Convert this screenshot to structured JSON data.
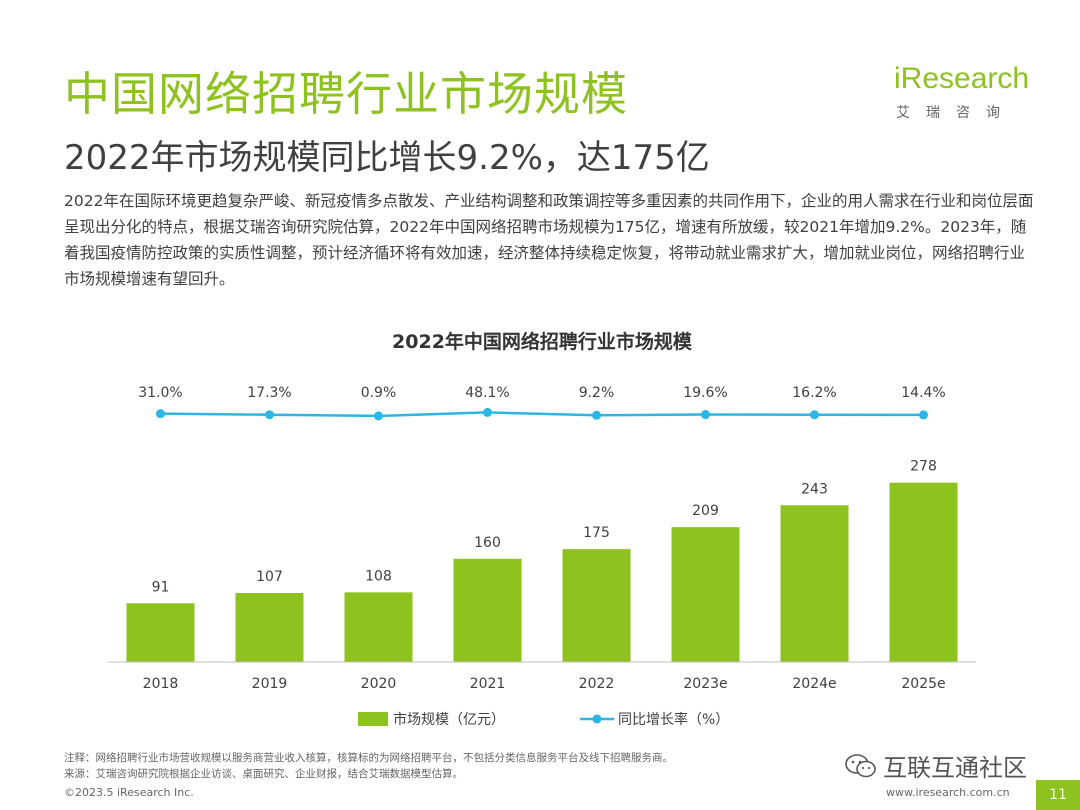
{
  "page": {
    "title": "中国网络招聘行业市场规模",
    "subtitle": "2022年市场规模同比增长9.2%，达175亿",
    "description": "2022年在国际环境更趋复杂严峻、新冠疫情多点散发、产业结构调整和政策调控等多重因素的共同作用下，企业的用人需求在行业和岗位层面呈现出分化的特点，根据艾瑞咨询研究院估算，2022年中国网络招聘市场规模为175亿，增速有所放缓，较2021年增加9.2%。2023年，随着我国疫情防控政策的实质性调整，预计经济循环将有效加速，经济整体持续稳定恢复，将带动就业需求扩大，增加就业岗位，网络招聘行业市场规模增速有望回升。",
    "logo_text": "iResearch",
    "logo_cn": "艾瑞咨询",
    "footnote_1": "注释：网络招聘行业市场营收规模以服务商营业收入核算，核算标的为网络招聘平台，不包括分类信息服务平台及线下招聘服务商。",
    "footnote_2": "来源：艾瑞咨询研究院根据企业访谈、桌面研究、企业财报，结合艾瑞数据模型估算。",
    "copyright": "©2023.5 iResearch Inc.",
    "website": "www.iresearch.com.cn",
    "page_number": "11",
    "watermark": "互联互通社区"
  },
  "chart_data": {
    "type": "bar",
    "title": "2022年中国网络招聘行业市场规模",
    "categories": [
      "2018",
      "2019",
      "2020",
      "2021",
      "2022",
      "2023e",
      "2024e",
      "2025e"
    ],
    "series": [
      {
        "name": "市场规模（亿元）",
        "type": "bar",
        "color": "#8dc21f",
        "values": [
          91,
          107,
          108,
          160,
          175,
          209,
          243,
          278
        ]
      },
      {
        "name": "同比增长率（%）",
        "type": "line",
        "color": "#2ab6e6",
        "values": [
          31.0,
          17.3,
          0.9,
          48.1,
          9.2,
          19.6,
          16.2,
          14.4
        ],
        "labels": [
          "31.0%",
          "17.3%",
          "0.9%",
          "48.1%",
          "9.2%",
          "19.6%",
          "16.2%",
          "14.4%"
        ]
      }
    ],
    "legend_position": "bottom",
    "grid": false
  }
}
